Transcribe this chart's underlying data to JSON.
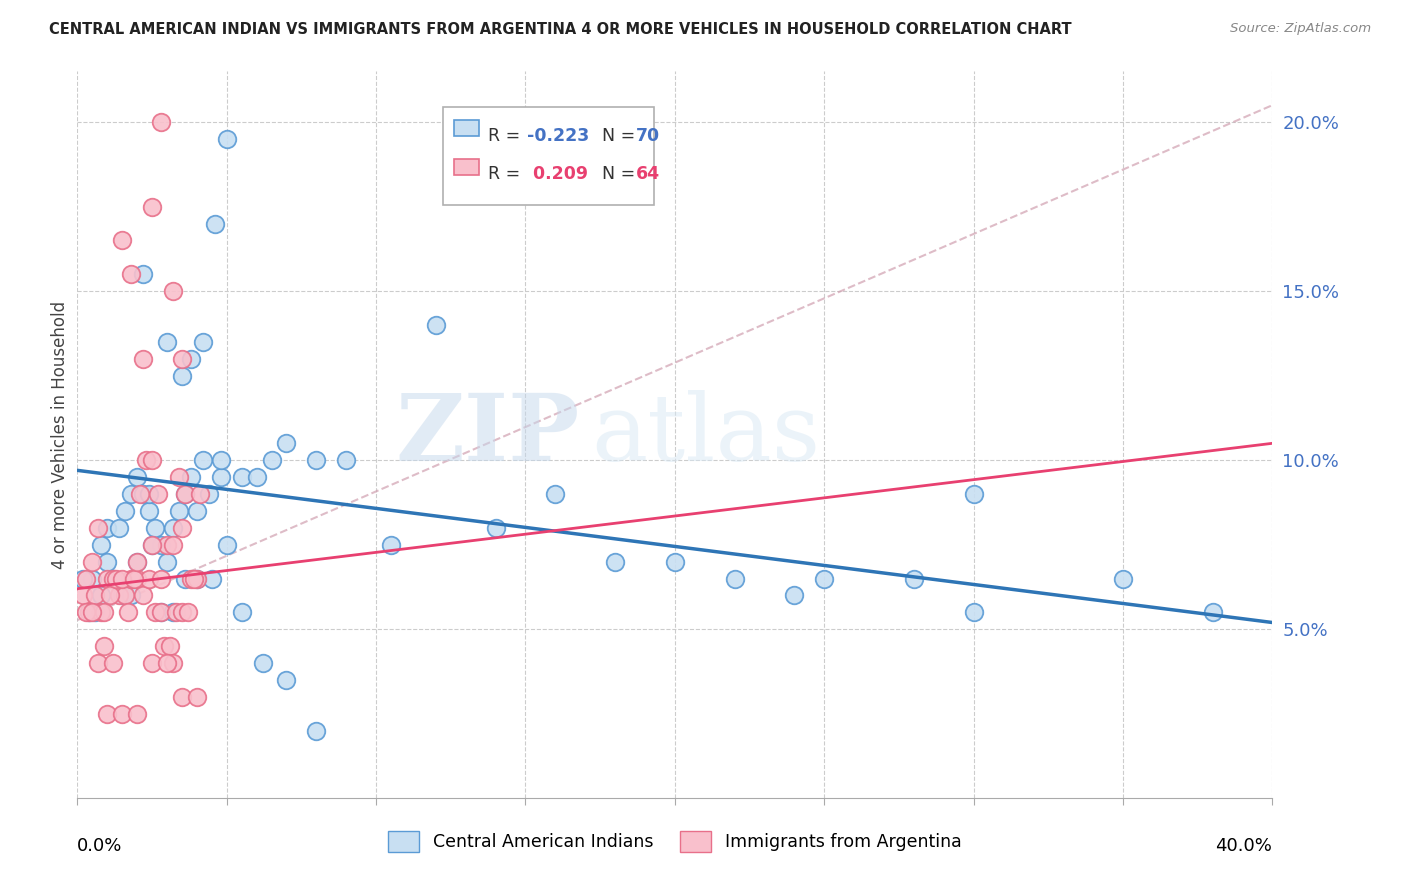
{
  "title": "CENTRAL AMERICAN INDIAN VS IMMIGRANTS FROM ARGENTINA 4 OR MORE VEHICLES IN HOUSEHOLD CORRELATION CHART",
  "source": "Source: ZipAtlas.com",
  "ylabel": "4 or more Vehicles in Household",
  "xlim": [
    0.0,
    0.4
  ],
  "ylim": [
    0.0,
    0.215
  ],
  "legend_blue_R": "-0.223",
  "legend_blue_N": "70",
  "legend_pink_R": "0.209",
  "legend_pink_N": "64",
  "legend_blue_label": "Central American Indians",
  "legend_pink_label": "Immigrants from Argentina",
  "blue_fill": "#c8dff2",
  "pink_fill": "#f9c0cc",
  "blue_edge": "#5b9bd5",
  "pink_edge": "#e8708a",
  "blue_line_color": "#2e75b6",
  "pink_line_color": "#e84070",
  "pink_dash_color": "#d0a0b0",
  "watermark_zip": "ZIP",
  "watermark_atlas": "atlas",
  "blue_line_start_y": 0.097,
  "blue_line_end_y": 0.052,
  "pink_line_start_y": 0.062,
  "pink_line_end_y": 0.105,
  "blue_scatter_x": [
    0.005,
    0.008,
    0.01,
    0.012,
    0.014,
    0.016,
    0.018,
    0.02,
    0.022,
    0.024,
    0.026,
    0.028,
    0.03,
    0.032,
    0.034,
    0.036,
    0.038,
    0.04,
    0.042,
    0.044,
    0.046,
    0.048,
    0.05,
    0.022,
    0.024,
    0.03,
    0.035,
    0.038,
    0.042,
    0.048,
    0.055,
    0.06,
    0.065,
    0.07,
    0.08,
    0.09,
    0.105,
    0.12,
    0.14,
    0.16,
    0.18,
    0.2,
    0.24,
    0.28,
    0.3,
    0.35,
    0.38,
    0.3,
    0.25,
    0.22,
    0.002,
    0.004,
    0.006,
    0.008,
    0.01,
    0.012,
    0.015,
    0.018,
    0.02,
    0.025,
    0.028,
    0.032,
    0.036,
    0.04,
    0.045,
    0.05,
    0.055,
    0.062,
    0.07,
    0.08
  ],
  "blue_scatter_y": [
    0.065,
    0.075,
    0.08,
    0.065,
    0.08,
    0.085,
    0.09,
    0.095,
    0.09,
    0.085,
    0.08,
    0.075,
    0.07,
    0.08,
    0.085,
    0.09,
    0.095,
    0.085,
    0.1,
    0.09,
    0.17,
    0.095,
    0.195,
    0.155,
    0.09,
    0.135,
    0.125,
    0.13,
    0.135,
    0.1,
    0.095,
    0.095,
    0.1,
    0.105,
    0.1,
    0.1,
    0.075,
    0.14,
    0.08,
    0.09,
    0.07,
    0.07,
    0.06,
    0.065,
    0.055,
    0.065,
    0.055,
    0.09,
    0.065,
    0.065,
    0.065,
    0.055,
    0.055,
    0.06,
    0.07,
    0.065,
    0.06,
    0.06,
    0.07,
    0.075,
    0.055,
    0.055,
    0.065,
    0.065,
    0.065,
    0.075,
    0.055,
    0.04,
    0.035,
    0.02
  ],
  "pink_scatter_x": [
    0.002,
    0.004,
    0.006,
    0.008,
    0.01,
    0.012,
    0.014,
    0.016,
    0.018,
    0.02,
    0.022,
    0.024,
    0.026,
    0.028,
    0.03,
    0.032,
    0.034,
    0.036,
    0.038,
    0.04,
    0.003,
    0.005,
    0.007,
    0.009,
    0.011,
    0.013,
    0.015,
    0.017,
    0.019,
    0.021,
    0.023,
    0.025,
    0.027,
    0.029,
    0.031,
    0.033,
    0.035,
    0.037,
    0.039,
    0.041,
    0.003,
    0.005,
    0.007,
    0.009,
    0.012,
    0.015,
    0.018,
    0.022,
    0.025,
    0.028,
    0.032,
    0.035,
    0.01,
    0.015,
    0.02,
    0.025,
    0.028,
    0.032,
    0.035,
    0.04,
    0.02,
    0.025,
    0.03,
    0.035
  ],
  "pink_scatter_y": [
    0.06,
    0.055,
    0.06,
    0.055,
    0.065,
    0.065,
    0.06,
    0.06,
    0.065,
    0.065,
    0.06,
    0.065,
    0.055,
    0.055,
    0.075,
    0.075,
    0.095,
    0.09,
    0.065,
    0.065,
    0.065,
    0.07,
    0.08,
    0.055,
    0.06,
    0.065,
    0.065,
    0.055,
    0.065,
    0.09,
    0.1,
    0.1,
    0.09,
    0.045,
    0.045,
    0.055,
    0.055,
    0.055,
    0.065,
    0.09,
    0.055,
    0.055,
    0.04,
    0.045,
    0.04,
    0.165,
    0.155,
    0.13,
    0.175,
    0.2,
    0.15,
    0.13,
    0.025,
    0.025,
    0.07,
    0.075,
    0.065,
    0.04,
    0.03,
    0.03,
    0.025,
    0.04,
    0.04,
    0.08
  ]
}
